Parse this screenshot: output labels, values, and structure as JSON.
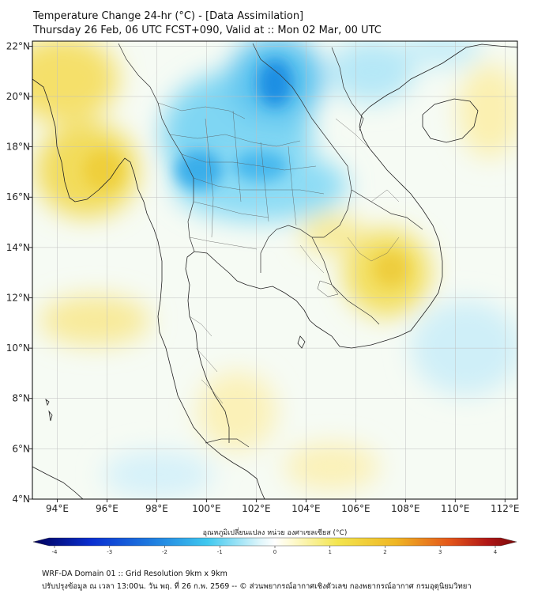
{
  "title": {
    "line1": "Temperature Change 24-hr (°C) - [Data Assimilation]",
    "line2": "Thursday 26 Feb, 06 UTC FCST+090, Valid at :: Mon 02 Mar, 00 UTC"
  },
  "map": {
    "lon_range": [
      93,
      112.5
    ],
    "lat_range": [
      4,
      22.2
    ],
    "lon_ticks": [
      "94°E",
      "96°E",
      "98°E",
      "100°E",
      "102°E",
      "104°E",
      "106°E",
      "108°E",
      "110°E",
      "112°E"
    ],
    "lon_values": [
      94,
      96,
      98,
      100,
      102,
      104,
      106,
      108,
      110,
      112
    ],
    "lat_ticks": [
      "4°N",
      "6°N",
      "8°N",
      "10°N",
      "12°N",
      "14°N",
      "16°N",
      "18°N",
      "20°N",
      "22°N"
    ],
    "lat_values": [
      4,
      6,
      8,
      10,
      12,
      14,
      16,
      18,
      20,
      22
    ],
    "anomalies": [
      {
        "region": "northern-laos-cold-core",
        "lon": 102.7,
        "lat": 20.6,
        "delta_c": -2.0
      },
      {
        "region": "northern-thailand-cooling",
        "lon": 101.6,
        "lat": 18.6,
        "delta_c": -1.2
      },
      {
        "region": "upper-thailand-cooling",
        "lon": 100.6,
        "lat": 17.0,
        "delta_c": -1.6
      },
      {
        "region": "northeast-thailand-cooling",
        "lon": 102.8,
        "lat": 16.8,
        "delta_c": -1.2
      },
      {
        "region": "northern-vietnam-cooling",
        "lon": 104.8,
        "lat": 20.5,
        "delta_c": -0.8
      },
      {
        "region": "myanmar-northwest-warming",
        "lon": 94.2,
        "lat": 20.6,
        "delta_c": 1.1
      },
      {
        "region": "myanmar-coast-warming",
        "lon": 96.2,
        "lat": 17.3,
        "delta_c": 1.3
      },
      {
        "region": "cambodia-east-warming",
        "lon": 107.2,
        "lat": 12.9,
        "delta_c": 1.2
      },
      {
        "region": "andaman-sea-warming",
        "lon": 96.0,
        "lat": 10.8,
        "delta_c": 0.6
      },
      {
        "region": "south-china-sea-cooling",
        "lon": 109.0,
        "lat": 9.0,
        "delta_c": -0.4
      }
    ]
  },
  "colorbar": {
    "title": "อุณหภูมิเปลี่ยนแปลง หน่วย องศาเซลเซียส (°C)",
    "min": -4,
    "max": 4,
    "tick_labels": [
      "-4",
      "-3",
      "-2",
      "-1",
      "0",
      "1",
      "2",
      "3",
      "4"
    ],
    "colors": {
      "cold_deep": "#00005a",
      "cold": "#1f7fe0",
      "cool": "#3fc8ef",
      "neutral": "#ffffff",
      "warm": "#f3e54e",
      "hot": "#ef8c14",
      "hot_deep": "#7a0a0a"
    }
  },
  "footer": {
    "line1": "WRF-DA Domain 01 :: Grid Resolution 9km x 9km",
    "line2": "ปรับปรุงข้อมูล ณ เวลา 13:00น. วัน พฤ. ที่ 26 ก.พ. 2569 -- © ส่วนพยากรณ์อากาศเชิงตัวเลข กองพยากรณ์อากาศ กรมอุตุนิยมวิทยา"
  },
  "colors": {
    "coast": "#222222",
    "border": "#333333",
    "grid": "#bfbfbf",
    "frame": "#000000"
  }
}
